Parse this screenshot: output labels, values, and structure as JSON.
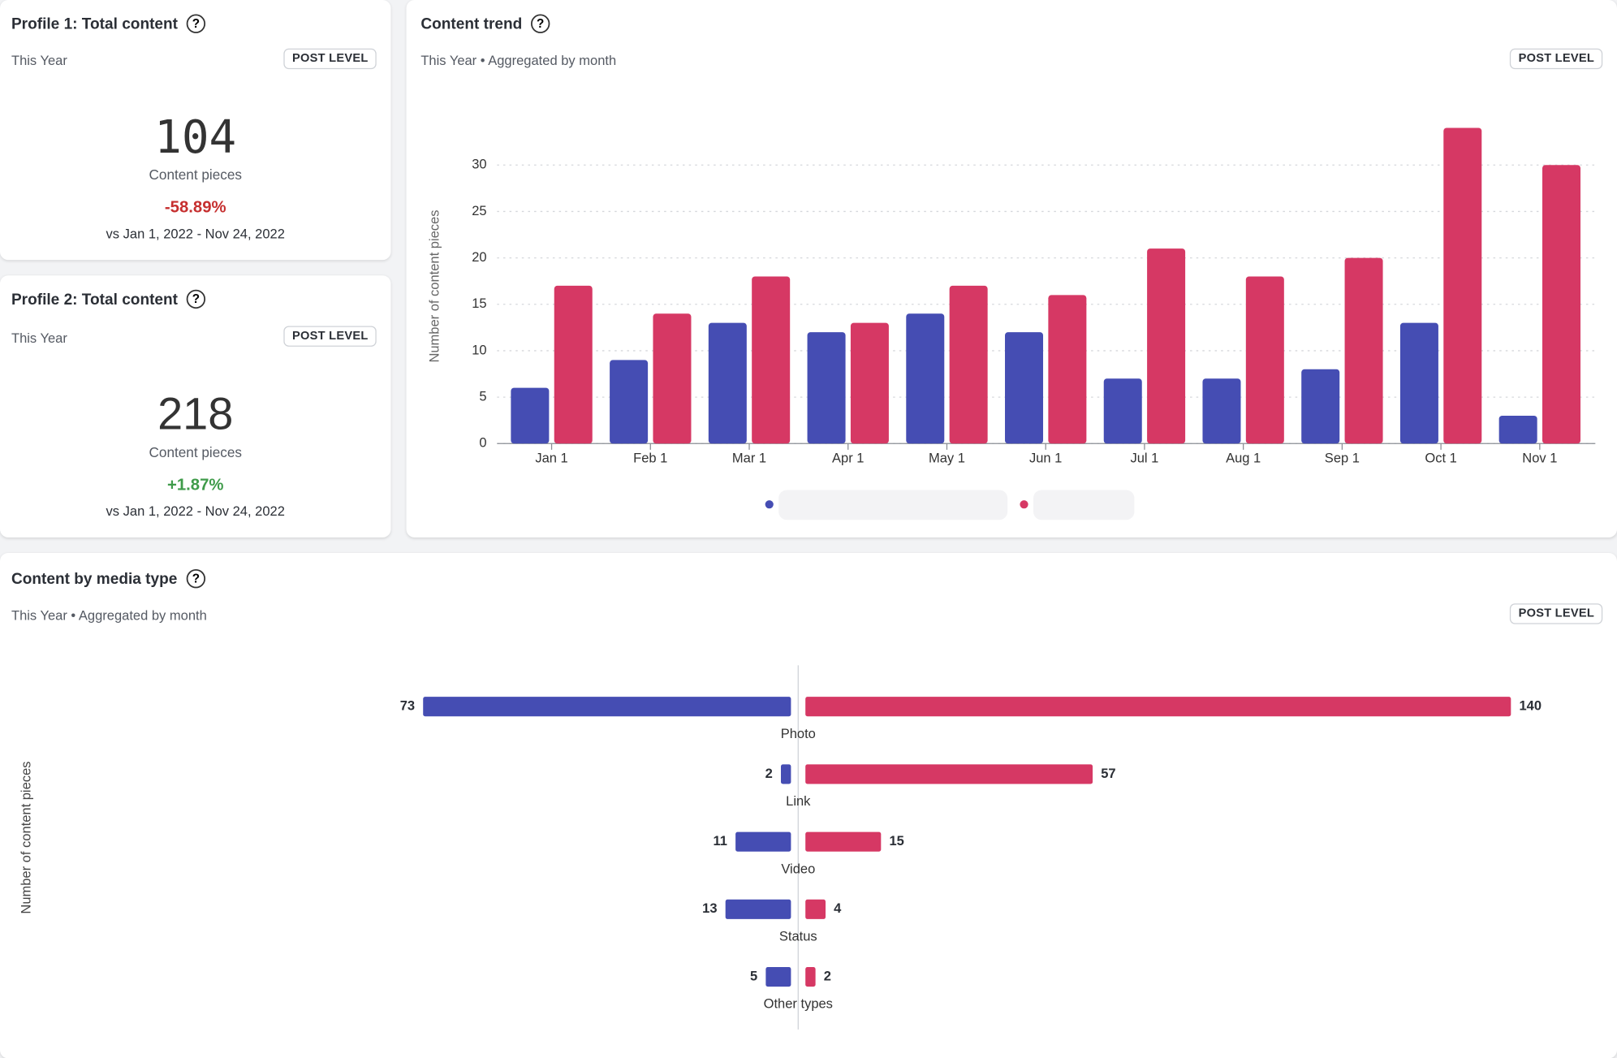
{
  "profile_cards": [
    {
      "title": "Profile 1: Total content",
      "subtitle": "This Year",
      "badge": "POST LEVEL",
      "value": 104,
      "value_caption": "Content pieces",
      "change": "-58.89%",
      "change_color": "#c62f2f",
      "comparison": "vs Jan 1, 2022 - Nov 24, 2022"
    },
    {
      "title": "Profile 2: Total content",
      "subtitle": "This Year",
      "badge": "POST LEVEL",
      "value": 218,
      "value_caption": "Content pieces",
      "change": "+1.87%",
      "change_color": "#3f9b4a",
      "comparison": "vs Jan 1, 2022 - Nov 24, 2022"
    }
  ],
  "chart_data": [
    {
      "type": "bar",
      "title": "Content trend",
      "subtitle": "This Year • Aggregated by month",
      "badge": "POST LEVEL",
      "y_label": "Number of content pieces",
      "categories": [
        "Jan 1",
        "Feb 1",
        "Mar 1",
        "Apr 1",
        "May 1",
        "Jun 1",
        "Jul 1",
        "Aug 1",
        "Sep 1",
        "Oct 1",
        "Nov 1"
      ],
      "series": [
        {
          "color": "#454db3",
          "values": [
            6,
            9,
            13,
            12,
            14,
            12,
            7,
            7,
            8,
            13,
            3
          ]
        },
        {
          "color": "#d63864",
          "values": [
            17,
            14,
            18,
            13,
            17,
            16,
            21,
            18,
            20,
            34,
            30
          ]
        }
      ],
      "ylim": [
        0,
        35
      ],
      "yticks": [
        0,
        5,
        10,
        15,
        20,
        25,
        30
      ],
      "grid": true
    },
    {
      "type": "butterfly",
      "title": "Content by media type",
      "subtitle": "This Year • Aggregated by month",
      "badge": "POST LEVEL",
      "y_label": "Number of content pieces",
      "categories": [
        "Photo",
        "Link",
        "Video",
        "Status",
        "Other types"
      ],
      "series": [
        {
          "color": "#454db3",
          "values": [
            73,
            2,
            11,
            13,
            5
          ]
        },
        {
          "color": "#d63864",
          "values": [
            140,
            57,
            15,
            4,
            2
          ]
        }
      ],
      "xlim": [
        0,
        150
      ]
    }
  ]
}
